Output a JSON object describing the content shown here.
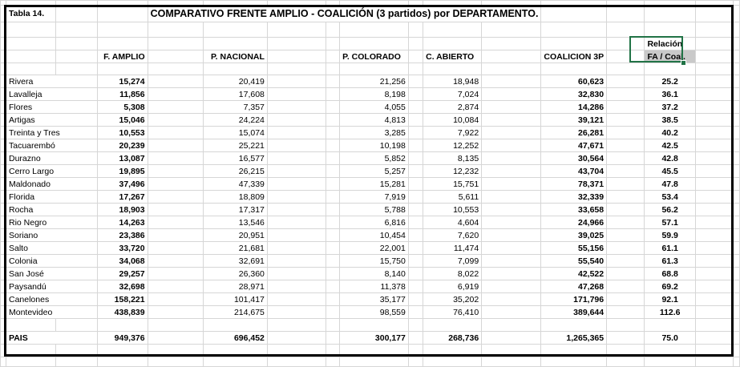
{
  "table_label": "Tabla 14.",
  "title": "COMPARATIVO FRENTE AMPLIO - COALICIÓN (3 partidos) por DEPARTAMENTO.",
  "headers": {
    "f_amplio": "F. AMPLIO",
    "p_nacional": "P. NACIONAL",
    "p_colorado": "P. COLORADO",
    "c_abierto": "C. ABIERTO",
    "coalicion": "COALICION 3P",
    "relacion_line1": "Relación",
    "relacion_line2": "FA / Coal."
  },
  "rows": [
    {
      "dept": "Rivera",
      "fa": "15,274",
      "pn": "20,419",
      "pc": "21,256",
      "ca": "18,948",
      "coal": "60,623",
      "rel": "25.2"
    },
    {
      "dept": "Lavalleja",
      "fa": "11,856",
      "pn": "17,608",
      "pc": "8,198",
      "ca": "7,024",
      "coal": "32,830",
      "rel": "36.1"
    },
    {
      "dept": "Flores",
      "fa": "5,308",
      "pn": "7,357",
      "pc": "4,055",
      "ca": "2,874",
      "coal": "14,286",
      "rel": "37.2"
    },
    {
      "dept": "Artigas",
      "fa": "15,046",
      "pn": "24,224",
      "pc": "4,813",
      "ca": "10,084",
      "coal": "39,121",
      "rel": "38.5"
    },
    {
      "dept": "Treinta y Tres",
      "fa": "10,553",
      "pn": "15,074",
      "pc": "3,285",
      "ca": "7,922",
      "coal": "26,281",
      "rel": "40.2"
    },
    {
      "dept": "Tacuarembó",
      "fa": "20,239",
      "pn": "25,221",
      "pc": "10,198",
      "ca": "12,252",
      "coal": "47,671",
      "rel": "42.5"
    },
    {
      "dept": "Durazno",
      "fa": "13,087",
      "pn": "16,577",
      "pc": "5,852",
      "ca": "8,135",
      "coal": "30,564",
      "rel": "42.8"
    },
    {
      "dept": "Cerro Largo",
      "fa": "19,895",
      "pn": "26,215",
      "pc": "5,257",
      "ca": "12,232",
      "coal": "43,704",
      "rel": "45.5"
    },
    {
      "dept": "Maldonado",
      "fa": "37,496",
      "pn": "47,339",
      "pc": "15,281",
      "ca": "15,751",
      "coal": "78,371",
      "rel": "47.8"
    },
    {
      "dept": "Florida",
      "fa": "17,267",
      "pn": "18,809",
      "pc": "7,919",
      "ca": "5,611",
      "coal": "32,339",
      "rel": "53.4"
    },
    {
      "dept": "Rocha",
      "fa": "18,903",
      "pn": "17,317",
      "pc": "5,788",
      "ca": "10,553",
      "coal": "33,658",
      "rel": "56.2"
    },
    {
      "dept": "Rio Negro",
      "fa": "14,263",
      "pn": "13,546",
      "pc": "6,816",
      "ca": "4,604",
      "coal": "24,966",
      "rel": "57.1"
    },
    {
      "dept": "Soriano",
      "fa": "23,386",
      "pn": "20,951",
      "pc": "10,454",
      "ca": "7,620",
      "coal": "39,025",
      "rel": "59.9"
    },
    {
      "dept": "Salto",
      "fa": "33,720",
      "pn": "21,681",
      "pc": "22,001",
      "ca": "11,474",
      "coal": "55,156",
      "rel": "61.1"
    },
    {
      "dept": "Colonia",
      "fa": "34,068",
      "pn": "32,691",
      "pc": "15,750",
      "ca": "7,099",
      "coal": "55,540",
      "rel": "61.3"
    },
    {
      "dept": "San José",
      "fa": "29,257",
      "pn": "26,360",
      "pc": "8,140",
      "ca": "8,022",
      "coal": "42,522",
      "rel": "68.8"
    },
    {
      "dept": "Paysandú",
      "fa": "32,698",
      "pn": "28,971",
      "pc": "11,378",
      "ca": "6,919",
      "coal": "47,268",
      "rel": "69.2"
    },
    {
      "dept": "Canelones",
      "fa": "158,221",
      "pn": "101,417",
      "pc": "35,177",
      "ca": "35,202",
      "coal": "171,796",
      "rel": "92.1"
    },
    {
      "dept": "Montevideo",
      "fa": "438,839",
      "pn": "214,675",
      "pc": "98,559",
      "ca": "76,410",
      "coal": "389,644",
      "rel": "112.6"
    }
  ],
  "total": {
    "dept": "PAIS",
    "fa": "949,376",
    "pn": "696,452",
    "pc": "300,177",
    "ca": "268,736",
    "coal": "1,265,365",
    "rel": "75.0"
  },
  "colors": {
    "selection": "#217346",
    "gridline": "#d6d6d6",
    "selected_fill": "#c9c9c9"
  }
}
